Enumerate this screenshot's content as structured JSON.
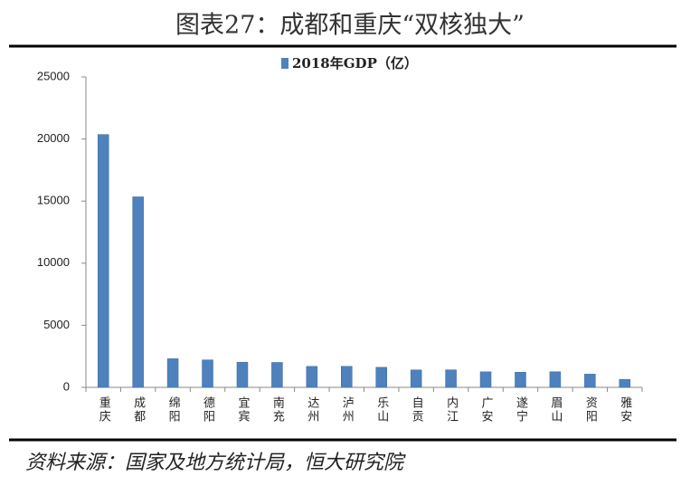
{
  "chart_data": {
    "type": "bar",
    "title": "图表27：成都和重庆“双核独大”",
    "source": "资料来源：国家及地方统计局，恒大研究院",
    "categories": [
      "重庆",
      "成都",
      "绵阳",
      "德阳",
      "宜宾",
      "南充",
      "达州",
      "泸州",
      "乐山",
      "自贡",
      "内江",
      "广安",
      "遂宁",
      "眉山",
      "资阳",
      "雅安"
    ],
    "series": [
      {
        "name": "2018年GDP（亿）",
        "color": "#4f81bd",
        "values": [
          20363,
          15343,
          2304,
          2213,
          2026,
          2006,
          1690,
          1695,
          1615,
          1406,
          1411,
          1250,
          1221,
          1256,
          1066,
          647
        ]
      }
    ],
    "ylim": [
      0,
      25000
    ],
    "yticks": [
      0,
      5000,
      10000,
      15000,
      20000,
      25000
    ],
    "grid": false,
    "legend": "top"
  }
}
